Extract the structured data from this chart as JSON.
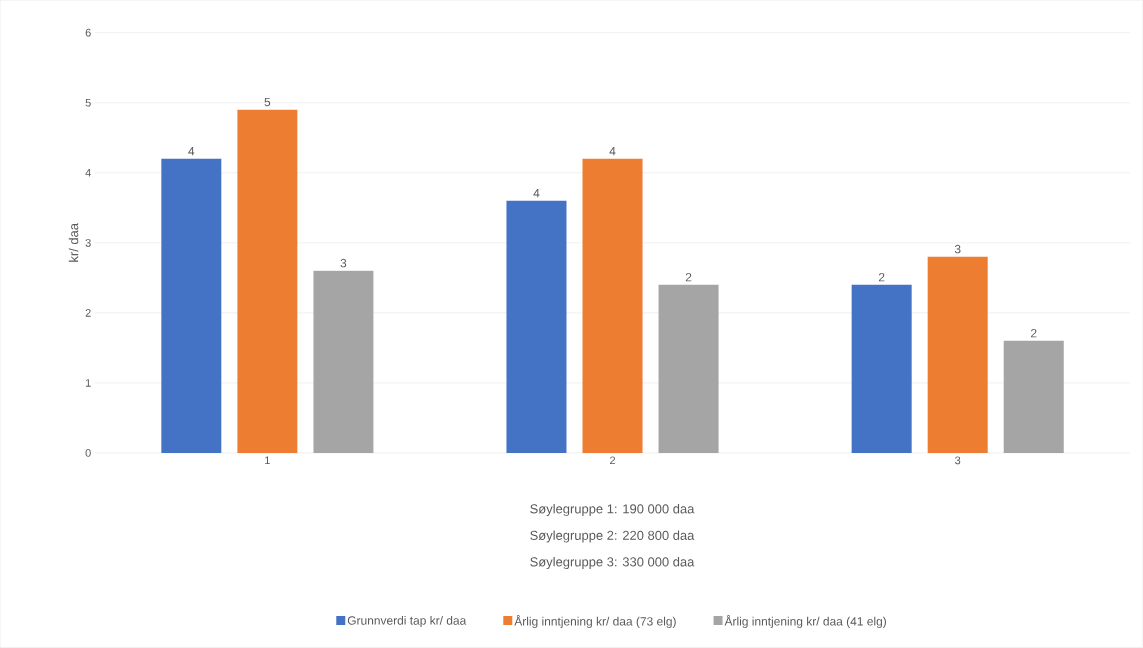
{
  "chart_data": {
    "type": "bar",
    "ylabel": "kr/ daa",
    "categories": [
      "1",
      "2",
      "3"
    ],
    "series": [
      {
        "name": "Grunnverdi tap kr/ daa",
        "color": "#4472c4",
        "values": [
          4.2,
          3.6,
          2.4
        ],
        "value_labels": [
          "4",
          "4",
          "2"
        ]
      },
      {
        "name": "Årlig inntjening kr/ daa (73 elg)",
        "color": "#ed7d31",
        "values": [
          4.9,
          4.2,
          2.8
        ],
        "value_labels": [
          "5",
          "4",
          "3"
        ]
      },
      {
        "name": "Årlig inntjening kr/ daa (41 elg)",
        "color": "#a5a5a5",
        "values": [
          2.6,
          2.4,
          1.6
        ],
        "value_labels": [
          "3",
          "2",
          "2"
        ]
      }
    ],
    "ylim": [
      0,
      6
    ],
    "yticks": [
      0,
      1,
      2,
      3,
      4,
      5,
      6
    ],
    "grid": "y",
    "legend": "bottom",
    "annotations": [
      "Søylegruppe 1: 190 000 daa",
      "Søylegruppe 2: 220 800 daa",
      "Søylegruppe 3: 330 000 daa"
    ]
  }
}
